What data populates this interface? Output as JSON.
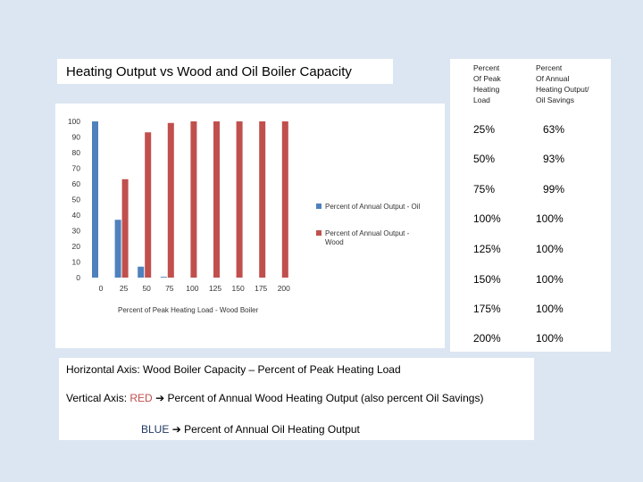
{
  "chart_title": "Heating Output vs Wood and Oil Boiler Capacity",
  "chart_data": {
    "type": "bar",
    "title": "Heating Output vs Wood and Oil Boiler Capacity",
    "categories": [
      "0",
      "25",
      "50",
      "75",
      "100",
      "125",
      "150",
      "175",
      "200"
    ],
    "series": [
      {
        "name": "Percent of Annual Output - Oil",
        "color": "#4f81bd",
        "values": [
          100,
          37,
          7,
          0.5,
          0,
          0,
          0,
          0,
          0
        ]
      },
      {
        "name": "Percent of Annual Output - Wood",
        "color": "#c0504d",
        "values": [
          0,
          63,
          93,
          99,
          100,
          100,
          100,
          100,
          100
        ]
      }
    ],
    "xlabel": "Percent of Peak Heating Load - Wood Boiler",
    "ylabel": "",
    "ylim": [
      0,
      100
    ],
    "yticks": [
      0,
      10,
      20,
      30,
      40,
      50,
      60,
      70,
      80,
      90,
      100
    ],
    "legend_position": "right"
  },
  "table": {
    "headers": [
      "Percent Of Peak Heating Load",
      "Percent Of Annual Heating Output/ Oil Savings"
    ],
    "header_lines": [
      [
        "Percent",
        "Of Peak",
        "Heating",
        "Load"
      ],
      [
        "Percent",
        "Of Annual",
        "Heating Output/",
        "Oil Savings"
      ]
    ],
    "rows": [
      [
        "25%",
        "63%"
      ],
      [
        "50%",
        "93%"
      ],
      [
        "75%",
        "99%"
      ],
      [
        "100%",
        "100%"
      ],
      [
        "125%",
        "100%"
      ],
      [
        "150%",
        "100%"
      ],
      [
        "175%",
        "100%"
      ],
      [
        "200%",
        "100%"
      ]
    ]
  },
  "notes": {
    "horizontal": "Horizontal Axis:  Wood Boiler Capacity – Percent of Peak Heating Load",
    "vertical_prefix": "Vertical Axis:  ",
    "red_label": "RED",
    "vertical_text": " Percent of Annual Wood Heating Output   (also percent Oil Savings)",
    "blue_label": "BLUE",
    "blue_text": " Percent of Annual Oil Heating Output",
    "arrow_icon": "arrow-right-icon",
    "red_color": "#c0504d",
    "blue_color": "#1f3864"
  }
}
